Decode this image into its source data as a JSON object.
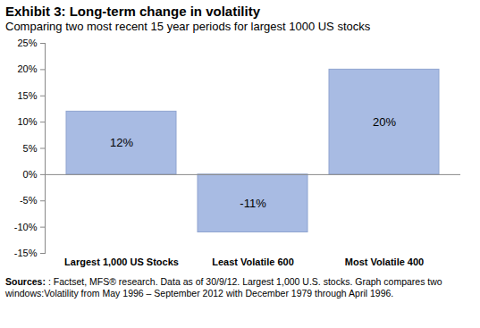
{
  "chart_data": {
    "type": "bar",
    "title": "Exhibit 3: Long-term change in volatility",
    "subtitle": "Comparing two most recent 15 year periods for largest 1000 US stocks",
    "categories": [
      "Largest 1,000 US Stocks",
      "Least Volatile 600",
      "Most Volatile 400"
    ],
    "values": [
      12,
      -11,
      20
    ],
    "value_labels": [
      "12%",
      "-11%",
      "20%"
    ],
    "data_labels": true,
    "color": "#a8bbe3",
    "ylim": [
      -15,
      25
    ],
    "yticks": [
      {
        "value": -15,
        "label": "-15%"
      },
      {
        "value": -10,
        "label": "-10%"
      },
      {
        "value": -5,
        "label": "-5%"
      },
      {
        "value": 0,
        "label": "0%"
      },
      {
        "value": 5,
        "label": "5%"
      },
      {
        "value": 10,
        "label": "10%"
      },
      {
        "value": 15,
        "label": "15%"
      },
      {
        "value": 20,
        "label": "20%"
      },
      {
        "value": 25,
        "label": "25%"
      }
    ],
    "grid": false,
    "source_label": "Sources:",
    "source": ": Factset, MFS® research. Data as of 30/9/12. Largest 1,000 U.S. stocks. Graph compares two windows:Volatility from May 1996 – September 2012 with December 1979 through April 1996."
  }
}
